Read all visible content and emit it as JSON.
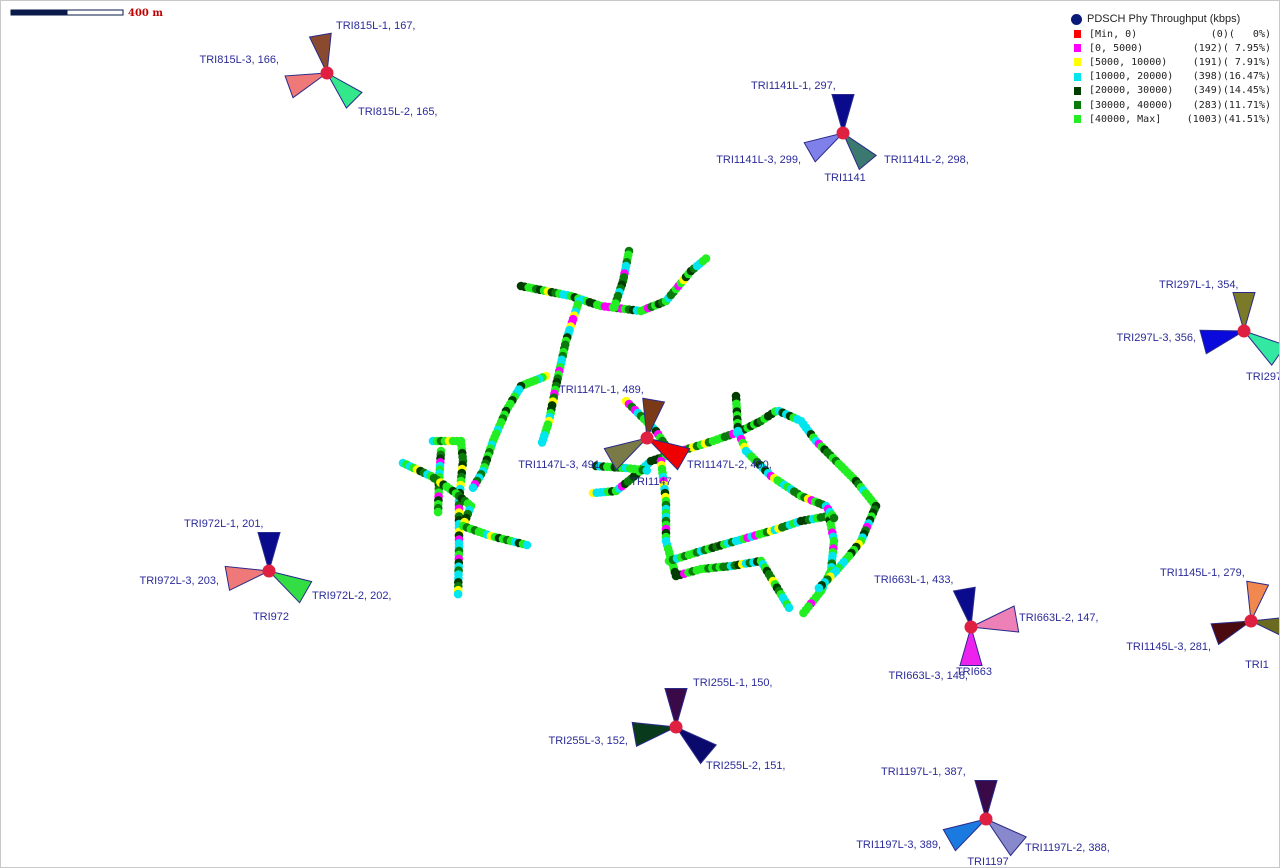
{
  "scale_bar": {
    "label": "400 m"
  },
  "legend": {
    "title": "PDSCH Phy Throughput (kbps)",
    "items": [
      {
        "range": "[Min, 0)",
        "count": "(0)",
        "pct": "(   0%)",
        "color": "#ff0000"
      },
      {
        "range": "[0, 5000)",
        "count": "(192)",
        "pct": "( 7.95%)",
        "color": "#ff00ff"
      },
      {
        "range": "[5000, 10000)",
        "count": "(191)",
        "pct": "( 7.91%)",
        "color": "#ffff00"
      },
      {
        "range": "[10000, 20000)",
        "count": "(398)",
        "pct": "(16.47%)",
        "color": "#00e5ee"
      },
      {
        "range": "[20000, 30000)",
        "count": "(349)",
        "pct": "(14.45%)",
        "color": "#003c00"
      },
      {
        "range": "[30000, 40000)",
        "count": "(283)",
        "pct": "(11.71%)",
        "color": "#0a7a0a"
      },
      {
        "range": "[40000, Max]",
        "count": "(1003)",
        "pct": "(41.51%)",
        "color": "#22ee22"
      }
    ]
  },
  "sites": [
    {
      "id": "TRI815",
      "name": "",
      "sectors": [
        {
          "label": "TRI815L-1,  167,",
          "color": "#8a4a30"
        },
        {
          "label": "TRI815L-2,  165,",
          "color": "#33e88a"
        },
        {
          "label": "TRI815L-3,  166,",
          "color": "#ef7878"
        }
      ]
    },
    {
      "id": "TRI1141",
      "name": "TRI1141",
      "sectors": [
        {
          "label": "TRI1141L-1,  297,",
          "color": "#0a0a8c"
        },
        {
          "label": "TRI1141L-2,  298,",
          "color": "#3a7870"
        },
        {
          "label": "TRI1141L-3,  299,",
          "color": "#8080ea"
        }
      ]
    },
    {
      "id": "TRI297",
      "name": "",
      "sectors": [
        {
          "label": "TRI297L-1,  354,",
          "color": "#7a7a28"
        },
        {
          "label": "TRI297",
          "color": "#33e8a0"
        },
        {
          "label": "TRI297L-3,  356,",
          "color": "#0a0adc"
        }
      ]
    },
    {
      "id": "TRI1147",
      "name": "TRI1147",
      "sectors": [
        {
          "label": "TRI1147L-1,  489,",
          "color": "#7a3a18"
        },
        {
          "label": "TRI1147L-2,  490,",
          "color": "#ee0000"
        },
        {
          "label": "TRI1147L-3,  491,",
          "color": "#7a7a48"
        }
      ]
    },
    {
      "id": "TRI972",
      "name": "TRI972",
      "sectors": [
        {
          "label": "TRI972L-1,  201,",
          "color": "#0a0a8c"
        },
        {
          "label": "TRI972L-2,  202,",
          "color": "#33dd44"
        },
        {
          "label": "TRI972L-3,  203,",
          "color": "#ef7878"
        }
      ]
    },
    {
      "id": "TRI663",
      "name": "TRI663",
      "sectors": [
        {
          "label": "TRI663L-1,  433,",
          "color": "#0a0a8c"
        },
        {
          "label": "TRI663L-2,  147,",
          "color": "#ee80b8"
        },
        {
          "label": "TRI663L-3,  148,",
          "color": "#ee22ee"
        }
      ]
    },
    {
      "id": "TRI1145",
      "name": "TRI1",
      "sectors": [
        {
          "label": "TRI1145L-1,  279,",
          "color": "#f08850"
        },
        {
          "label": "",
          "color": "#6a6a20"
        },
        {
          "label": "TRI1145L-3,  281,",
          "color": "#4a0a10"
        }
      ]
    },
    {
      "id": "TRI255",
      "name": "",
      "sectors": [
        {
          "label": "TRI255L-1,  150,",
          "color": "#3a0a48"
        },
        {
          "label": "TRI255L-2,  151,",
          "color": "#0a0a6c"
        },
        {
          "label": "TRI255L-3,  152,",
          "color": "#0a3a1c"
        }
      ]
    },
    {
      "id": "TRI1197",
      "name": "TRI1197",
      "sectors": [
        {
          "label": "TRI1197L-1,  387,",
          "color": "#3a0a48"
        },
        {
          "label": "TRI1197L-2,  388,",
          "color": "#8888cc"
        },
        {
          "label": "TRI1197L-3,  389,",
          "color": "#1a7ae0"
        }
      ]
    }
  ]
}
